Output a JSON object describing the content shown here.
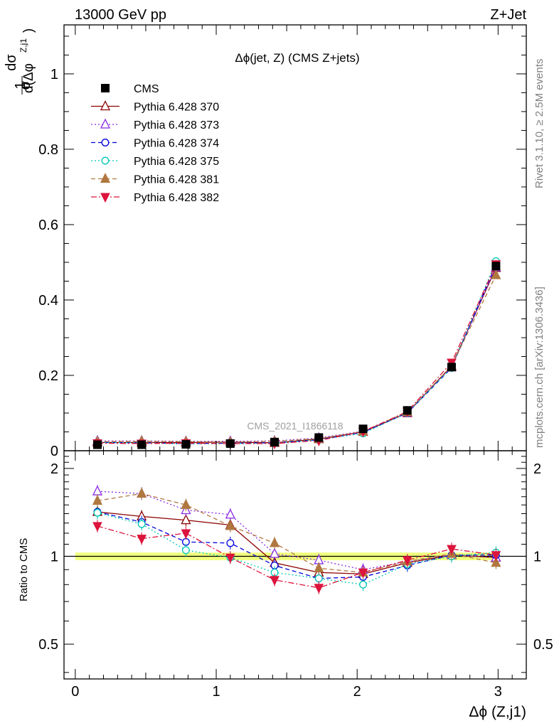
{
  "header": {
    "left": "13000 GeV pp",
    "right": "Z+Jet"
  },
  "side_labels": {
    "rivet": "Rivet 3.1.10, ≥ 2.5M events",
    "source": "mcplots.cern.ch [arXiv:1306.3436]"
  },
  "chart_data": [
    {
      "panel": "main",
      "type": "scatter",
      "title": "Δϕ(jet, Z) (CMS Z+jets)",
      "watermark": "CMS_2021_I1866118",
      "ylabel": "1/σ dσ/d(Δϕ^{Z,j1})",
      "xlabel": "",
      "xlim": [
        -0.08,
        3.2
      ],
      "ylim": [
        0,
        1.13
      ],
      "x_ticks": [
        "0",
        "1",
        "2",
        "3"
      ],
      "y_ticks": [
        "0",
        "0.2",
        "0.4",
        "0.6",
        "0.8",
        "1"
      ],
      "legend_position": "top-left",
      "x": [
        0.157,
        0.471,
        0.785,
        1.1,
        1.414,
        1.728,
        2.042,
        2.356,
        2.67,
        2.985
      ],
      "series": [
        {
          "name": "CMS",
          "marker": "square",
          "color": "#000000",
          "line": "none",
          "values": [
            0.016,
            0.016,
            0.017,
            0.019,
            0.023,
            0.035,
            0.058,
            0.107,
            0.222,
            0.49
          ]
        },
        {
          "name": "Pythia 6.428 370",
          "marker": "triangle-open",
          "color": "#8b0000",
          "line": "solid",
          "values": [
            0.022,
            0.022,
            0.022,
            0.023,
            0.021,
            0.031,
            0.05,
            0.1,
            0.225,
            0.485
          ]
        },
        {
          "name": "Pythia 6.428 373",
          "marker": "triangle-open",
          "color": "#8a2be2",
          "line": "dotted",
          "values": [
            0.026,
            0.026,
            0.025,
            0.025,
            0.026,
            0.034,
            0.052,
            0.102,
            0.222,
            0.487
          ]
        },
        {
          "name": "Pythia 6.428 374",
          "marker": "circle-open",
          "color": "#0000dd",
          "line": "dashed",
          "values": [
            0.022,
            0.021,
            0.019,
            0.02,
            0.021,
            0.029,
            0.049,
            0.1,
            0.22,
            0.494
          ]
        },
        {
          "name": "Pythia 6.428 375",
          "marker": "circle-open",
          "color": "#00c8b4",
          "line": "dotted",
          "values": [
            0.022,
            0.021,
            0.018,
            0.019,
            0.02,
            0.029,
            0.046,
            0.101,
            0.22,
            0.503
          ]
        },
        {
          "name": "Pythia 6.428 381",
          "marker": "triangle-filled",
          "color": "#b07840",
          "line": "dashed",
          "values": [
            0.024,
            0.025,
            0.024,
            0.023,
            0.025,
            0.032,
            0.051,
            0.103,
            0.225,
            0.466
          ]
        },
        {
          "name": "Pythia 6.428 382",
          "marker": "triangle-down-filled",
          "color": "#dc143c",
          "line": "dashdot",
          "values": [
            0.02,
            0.019,
            0.02,
            0.019,
            0.019,
            0.027,
            0.051,
            0.104,
            0.234,
            0.495
          ]
        }
      ]
    },
    {
      "panel": "ratio",
      "type": "line",
      "ylabel": "Ratio to CMS",
      "xlabel": "Δϕ (Z,j1)",
      "xlim": [
        -0.08,
        3.2
      ],
      "ylim": [
        0.38,
        2.3
      ],
      "log_y": true,
      "x_ticks": [
        "0",
        "1",
        "2",
        "3"
      ],
      "y_ticks": [
        "0.5",
        "1",
        "2"
      ],
      "reference_value": 1,
      "reference_band": [
        0.97,
        1.03
      ],
      "x": [
        0.157,
        0.471,
        0.785,
        1.1,
        1.414,
        1.728,
        2.042,
        2.356,
        2.67,
        2.985
      ],
      "series": [
        {
          "name": "Pythia 6.428 370",
          "color": "#8b0000",
          "values": [
            1.42,
            1.37,
            1.33,
            1.28,
            0.95,
            0.88,
            0.87,
            0.95,
            1.01,
            0.99
          ]
        },
        {
          "name": "Pythia 6.428 373",
          "color": "#8a2be2",
          "values": [
            1.67,
            1.64,
            1.44,
            1.39,
            1.02,
            0.97,
            0.9,
            0.96,
            1.01,
            0.99
          ]
        },
        {
          "name": "Pythia 6.428 374",
          "color": "#0000dd",
          "values": [
            1.42,
            1.31,
            1.12,
            1.11,
            0.93,
            0.84,
            0.85,
            0.93,
            1.01,
            1.01
          ]
        },
        {
          "name": "Pythia 6.428 375",
          "color": "#00c8b4",
          "values": [
            1.41,
            1.29,
            1.05,
            0.99,
            0.88,
            0.84,
            0.8,
            0.94,
            1.0,
            1.03
          ]
        },
        {
          "name": "Pythia 6.428 381",
          "color": "#b07840",
          "values": [
            1.55,
            1.64,
            1.5,
            1.27,
            1.11,
            0.91,
            0.88,
            0.96,
            1.02,
            0.95
          ]
        },
        {
          "name": "Pythia 6.428 382",
          "color": "#dc143c",
          "values": [
            1.27,
            1.15,
            1.2,
            0.99,
            0.83,
            0.78,
            0.88,
            0.97,
            1.06,
            1.01
          ]
        }
      ]
    }
  ]
}
